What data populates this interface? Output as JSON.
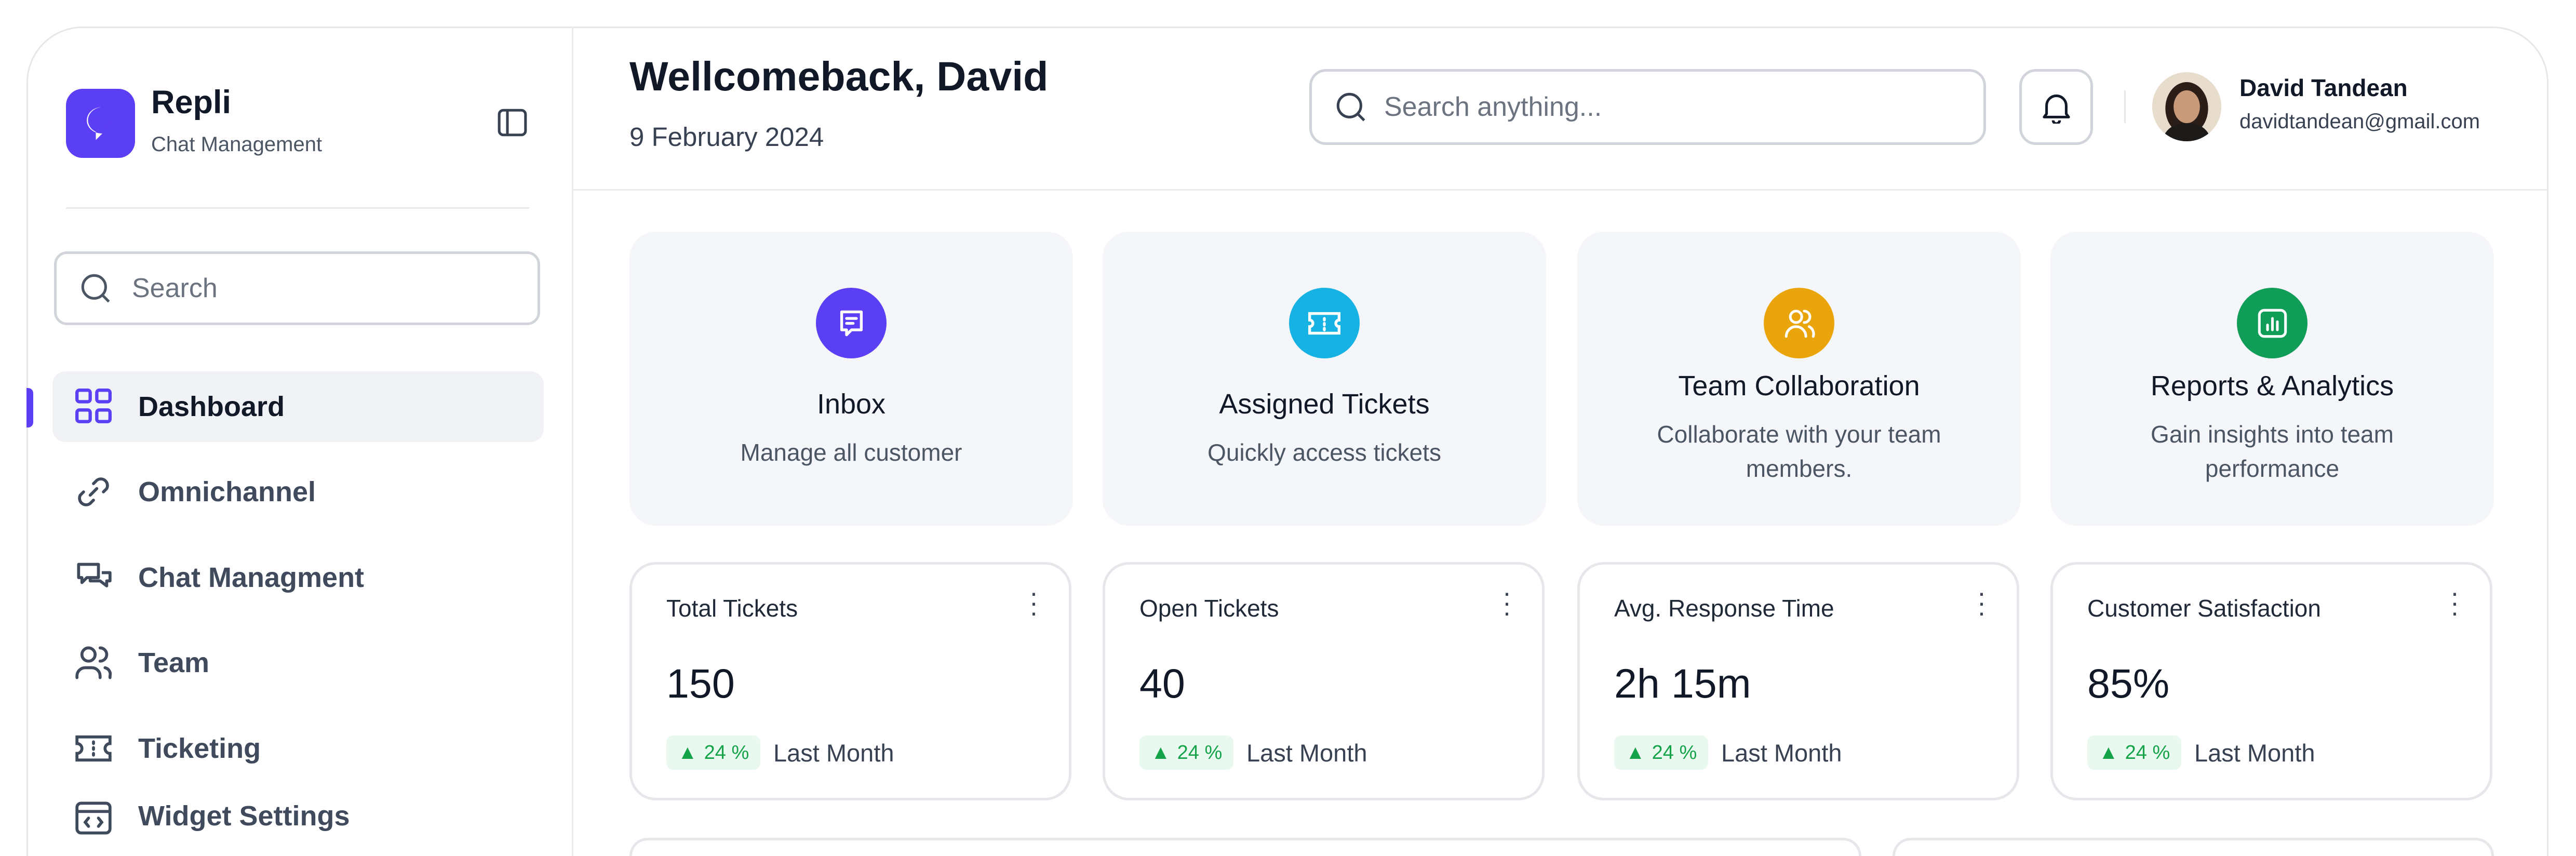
{
  "brand": {
    "name": "Repli",
    "subtitle": "Chat Management",
    "color": "#5b3ff5"
  },
  "sidebar": {
    "search_placeholder": "Search",
    "items": [
      {
        "label": "Dashboard",
        "icon": "grid-icon",
        "active": true
      },
      {
        "label": "Omnichannel",
        "icon": "link-icon"
      },
      {
        "label": "Chat Managment",
        "icon": "chat-bubbles-icon"
      },
      {
        "label": "Team",
        "icon": "users-icon"
      },
      {
        "label": "Ticketing",
        "icon": "ticket-icon"
      },
      {
        "label": "Widget Settings",
        "icon": "code-window-icon"
      }
    ]
  },
  "header": {
    "title": "Wellcomeback, David",
    "date": "9 February 2024",
    "search_placeholder": "Search anything...",
    "user": {
      "name": "David Tandean",
      "email": "davidtandean@gmail.com"
    }
  },
  "quick_actions": [
    {
      "title": "Inbox",
      "subtitle": "Manage all customer",
      "color": "#5b3ff5",
      "icon": "message-icon"
    },
    {
      "title": "Assigned Tickets",
      "subtitle": "Quickly access tickets",
      "color": "#16b2e3",
      "icon": "ticket-icon"
    },
    {
      "title": "Team Collaboration",
      "subtitle": "Collaborate with your team members.",
      "color": "#eaa50c",
      "icon": "users-icon"
    },
    {
      "title": "Reports & Analytics",
      "subtitle": "Gain insights into team performance",
      "color": "#0f9d58",
      "icon": "chart-icon"
    }
  ],
  "stats": [
    {
      "label": "Total Tickets",
      "value": "150",
      "change": "24 %",
      "period": "Last Month"
    },
    {
      "label": "Open Tickets",
      "value": "40",
      "change": "24 %",
      "period": "Last Month"
    },
    {
      "label": "Avg. Response Time",
      "value": "2h 15m",
      "change": "24 %",
      "period": "Last Month"
    },
    {
      "label": "Customer Satisfaction",
      "value": "85%",
      "change": "24 %",
      "period": "Last Month"
    }
  ]
}
